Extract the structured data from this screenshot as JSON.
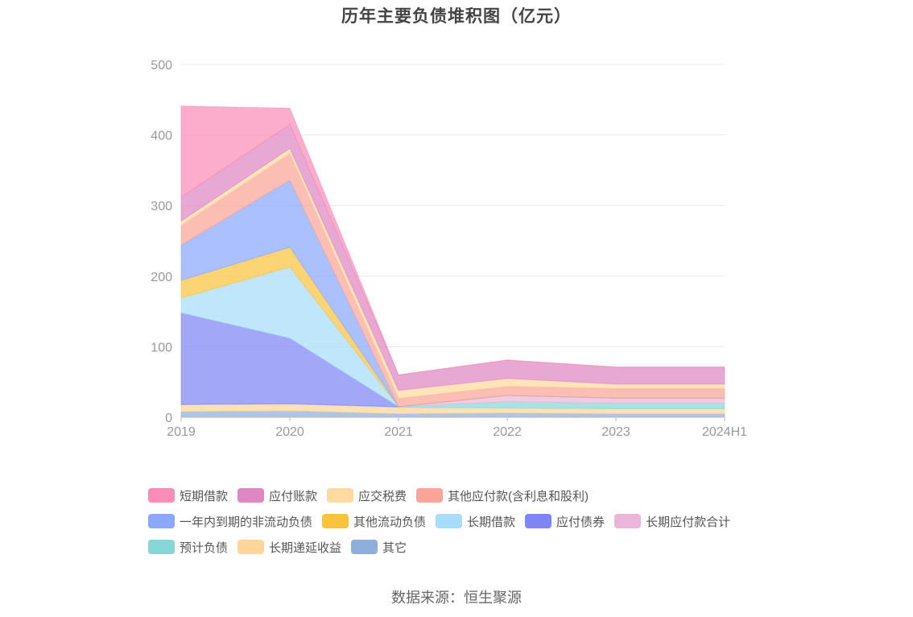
{
  "title": "历年主要负债堆积图（亿元）",
  "source": "数据来源：恒生聚源",
  "chart_data": {
    "type": "area",
    "stacked": true,
    "title": "历年主要负债堆积图（亿元）",
    "categories": [
      "2019",
      "2020",
      "2021",
      "2022",
      "2023",
      "2024H1"
    ],
    "yticks": [
      0,
      100,
      200,
      300,
      400,
      500
    ],
    "ylim": [
      0,
      500
    ],
    "grid": true,
    "legend_position": "bottom",
    "series": [
      {
        "name": "其它",
        "color": "#8eaedc",
        "values": [
          8,
          9,
          5,
          6,
          5,
          5
        ]
      },
      {
        "name": "长期递延收益",
        "color": "#ffd699",
        "values": [
          10,
          10,
          9,
          7,
          7,
          7
        ]
      },
      {
        "name": "预计负债",
        "color": "#87d7d8",
        "values": [
          0,
          0,
          1,
          9,
          8,
          8
        ]
      },
      {
        "name": "长期应付款合计",
        "color": "#ebb6da",
        "values": [
          0,
          0,
          0,
          9,
          7,
          7
        ]
      },
      {
        "name": "应付债券",
        "color": "#7e85f5",
        "values": [
          130,
          93,
          0,
          0,
          0,
          0
        ]
      },
      {
        "name": "长期借款",
        "color": "#a8ddf9",
        "values": [
          21,
          101,
          0,
          0,
          0,
          0
        ]
      },
      {
        "name": "其他流动负债",
        "color": "#fbc33d",
        "values": [
          25,
          28,
          0,
          0,
          0,
          0
        ]
      },
      {
        "name": "一年内到期的非流动负债",
        "color": "#8aa8fd",
        "values": [
          50,
          95,
          0,
          0,
          0,
          0
        ]
      },
      {
        "name": "其他应付款(含利息和股利)",
        "color": "#faa597",
        "values": [
          28,
          38,
          12,
          13,
          14,
          14
        ]
      },
      {
        "name": "应交税费",
        "color": "#ffdaa0",
        "values": [
          6,
          7,
          11,
          11,
          6,
          6
        ]
      },
      {
        "name": "应付账款",
        "color": "#df87c3",
        "values": [
          34,
          34,
          22,
          26,
          24,
          24
        ]
      },
      {
        "name": "短期借款",
        "color": "#f98db7",
        "values": [
          129,
          23,
          0,
          0,
          0,
          0
        ]
      }
    ]
  },
  "legend": [
    {
      "name": "短期借款",
      "color": "#f98db7"
    },
    {
      "name": "应付账款",
      "color": "#df87c3"
    },
    {
      "name": "应交税费",
      "color": "#ffdaa0"
    },
    {
      "name": "其他应付款(含利息和股利)",
      "color": "#faa597"
    },
    {
      "name": "一年内到期的非流动负债",
      "color": "#8aa8fd"
    },
    {
      "name": "其他流动负债",
      "color": "#fbc33d"
    },
    {
      "name": "长期借款",
      "color": "#a8ddf9"
    },
    {
      "name": "应付债券",
      "color": "#7e85f5"
    },
    {
      "name": "长期应付款合计",
      "color": "#ebb6da"
    },
    {
      "name": "预计负债",
      "color": "#87d7d8"
    },
    {
      "name": "长期递延收益",
      "color": "#ffd699"
    },
    {
      "name": "其它",
      "color": "#8eaedc"
    }
  ]
}
